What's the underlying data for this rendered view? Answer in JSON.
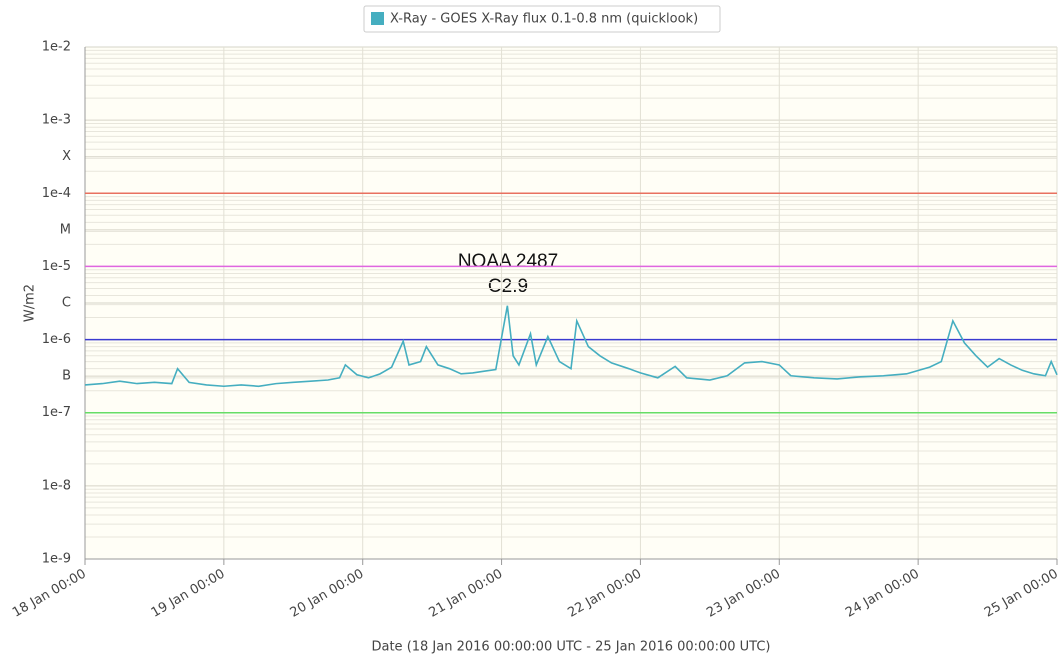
{
  "chart_data": {
    "type": "line",
    "log_y": true,
    "grid": true,
    "legend_position": "top",
    "y_label": "W/m2",
    "x_label": "Date (18 Jan 2016 00:00:00 UTC - 25 Jan 2016 00:00:00 UTC)",
    "xlim": [
      "2016-01-18T00:00",
      "2016-01-25T00:00"
    ],
    "xticks": [
      {
        "value": "2016-01-18T00:00",
        "label": "18 Jan 00:00"
      },
      {
        "value": "2016-01-19T00:00",
        "label": "19 Jan 00:00"
      },
      {
        "value": "2016-01-20T00:00",
        "label": "20 Jan 00:00"
      },
      {
        "value": "2016-01-21T00:00",
        "label": "21 Jan 00:00"
      },
      {
        "value": "2016-01-22T00:00",
        "label": "22 Jan 00:00"
      },
      {
        "value": "2016-01-23T00:00",
        "label": "23 Jan 00:00"
      },
      {
        "value": "2016-01-24T00:00",
        "label": "24 Jan 00:00"
      },
      {
        "value": "2016-01-25T00:00",
        "label": "25 Jan 00:00"
      }
    ],
    "ylim": [
      1e-09,
      0.01
    ],
    "yticks": [
      {
        "value": 1e-09,
        "label": "1e-9"
      },
      {
        "value": 1e-08,
        "label": "1e-8"
      },
      {
        "value": 1e-07,
        "label": "1e-7"
      },
      {
        "value": 3.162e-07,
        "label": "B"
      },
      {
        "value": 1e-06,
        "label": "1e-6"
      },
      {
        "value": 3.162e-06,
        "label": "C"
      },
      {
        "value": 1e-05,
        "label": "1e-5"
      },
      {
        "value": 3.162e-05,
        "label": "M"
      },
      {
        "value": 0.0001,
        "label": "1e-4"
      },
      {
        "value": 0.0003162,
        "label": "X"
      },
      {
        "value": 0.001,
        "label": "1e-3"
      },
      {
        "value": 0.01,
        "label": "1e-2"
      }
    ],
    "thresholds": [
      {
        "value": 0.0001,
        "color": "#e8705f"
      },
      {
        "value": 1e-05,
        "color": "#e066e0"
      },
      {
        "value": 1e-06,
        "color": "#3a3ad0"
      },
      {
        "value": 1e-07,
        "color": "#66dd66"
      }
    ],
    "annotations": [
      {
        "text": "NOAA 2487"
      },
      {
        "text": "C2.9"
      }
    ],
    "x": [
      "2016-01-18T00:00",
      "2016-01-18T03:00",
      "2016-01-18T06:00",
      "2016-01-18T09:00",
      "2016-01-18T12:00",
      "2016-01-18T15:00",
      "2016-01-18T16:00",
      "2016-01-18T18:00",
      "2016-01-18T21:00",
      "2016-01-19T00:00",
      "2016-01-19T03:00",
      "2016-01-19T06:00",
      "2016-01-19T09:00",
      "2016-01-19T12:00",
      "2016-01-19T15:00",
      "2016-01-19T18:00",
      "2016-01-19T20:00",
      "2016-01-19T21:00",
      "2016-01-19T23:00",
      "2016-01-20T01:00",
      "2016-01-20T03:00",
      "2016-01-20T05:00",
      "2016-01-20T07:00",
      "2016-01-20T08:00",
      "2016-01-20T10:00",
      "2016-01-20T11:00",
      "2016-01-20T13:00",
      "2016-01-20T15:00",
      "2016-01-20T17:00",
      "2016-01-20T19:00",
      "2016-01-20T21:00",
      "2016-01-20T23:00",
      "2016-01-21T01:00",
      "2016-01-21T02:00",
      "2016-01-21T03:00",
      "2016-01-21T05:00",
      "2016-01-21T06:00",
      "2016-01-21T08:00",
      "2016-01-21T10:00",
      "2016-01-21T12:00",
      "2016-01-21T13:00",
      "2016-01-21T15:00",
      "2016-01-21T17:00",
      "2016-01-21T19:00",
      "2016-01-21T22:00",
      "2016-01-22T00:00",
      "2016-01-22T03:00",
      "2016-01-22T06:00",
      "2016-01-22T08:00",
      "2016-01-22T12:00",
      "2016-01-22T15:00",
      "2016-01-22T18:00",
      "2016-01-22T21:00",
      "2016-01-23T00:00",
      "2016-01-23T02:00",
      "2016-01-23T06:00",
      "2016-01-23T10:00",
      "2016-01-23T14:00",
      "2016-01-23T18:00",
      "2016-01-23T22:00",
      "2016-01-24T02:00",
      "2016-01-24T04:00",
      "2016-01-24T06:00",
      "2016-01-24T08:00",
      "2016-01-24T10:00",
      "2016-01-24T12:00",
      "2016-01-24T14:00",
      "2016-01-24T16:00",
      "2016-01-24T18:00",
      "2016-01-24T20:00",
      "2016-01-24T22:00",
      "2016-01-24T23:00",
      "2016-01-25T00:00"
    ],
    "series": [
      {
        "name": "X-Ray - GOES X-Ray flux 0.1-0.8 nm (quicklook)",
        "color": "#45aec0",
        "values": [
          2.4e-07,
          2.5e-07,
          2.7e-07,
          2.5e-07,
          2.6e-07,
          2.5e-07,
          4e-07,
          2.6e-07,
          2.4e-07,
          2.3e-07,
          2.4e-07,
          2.3e-07,
          2.5e-07,
          2.6e-07,
          2.7e-07,
          2.8e-07,
          3e-07,
          4.5e-07,
          3.3e-07,
          3e-07,
          3.4e-07,
          4.2e-07,
          9.5e-07,
          4.5e-07,
          5e-07,
          8e-07,
          4.5e-07,
          4e-07,
          3.4e-07,
          3.5e-07,
          3.7e-07,
          3.9e-07,
          2.9e-06,
          6e-07,
          4.5e-07,
          1.2e-06,
          4.5e-07,
          1.1e-06,
          5e-07,
          4e-07,
          1.8e-06,
          8e-07,
          6e-07,
          4.8e-07,
          4e-07,
          3.5e-07,
          3e-07,
          4.3e-07,
          3e-07,
          2.8e-07,
          3.2e-07,
          4.8e-07,
          5e-07,
          4.5e-07,
          3.2e-07,
          3e-07,
          2.9e-07,
          3.1e-07,
          3.2e-07,
          3.4e-07,
          4.2e-07,
          5e-07,
          1.8e-06,
          9e-07,
          6e-07,
          4.2e-07,
          5.5e-07,
          4.5e-07,
          3.8e-07,
          3.4e-07,
          3.2e-07,
          5e-07,
          3.3e-07
        ]
      }
    ]
  }
}
